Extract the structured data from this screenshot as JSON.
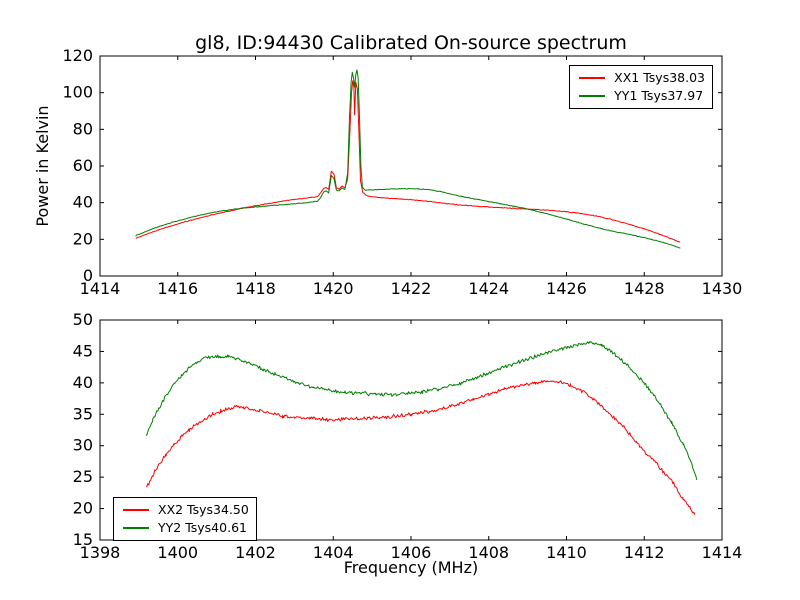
{
  "figure_background": "#ffffff",
  "chart_data": [
    {
      "type": "line",
      "name": "calibrated-on-source-spectrum-subband-1",
      "title": "gl8, ID:94430 Calibrated On-source spectrum",
      "ylabel": "Power in Kelvin",
      "xlim": [
        1414,
        1430
      ],
      "ylim": [
        0,
        120
      ],
      "xticks": [
        1414,
        1416,
        1418,
        1420,
        1422,
        1424,
        1426,
        1428,
        1430
      ],
      "yticks": [
        0,
        20,
        40,
        60,
        80,
        100,
        120
      ],
      "grid": false,
      "legend": {
        "position": "upper-right",
        "entries": [
          {
            "label": "XX1 Tsys38.03",
            "color": "#ff0000"
          },
          {
            "label": "YY1 Tsys37.97",
            "color": "#008000"
          }
        ]
      },
      "series": [
        {
          "name": "XX1",
          "color": "#ff0000",
          "noise": 0.2,
          "seed": 7,
          "points": [
            [
              1414.92,
              20.5
            ],
            [
              1415.2,
              22.8
            ],
            [
              1415.5,
              25.1
            ],
            [
              1415.9,
              27.8
            ],
            [
              1416.3,
              30.2
            ],
            [
              1416.7,
              32.4
            ],
            [
              1417.1,
              34.4
            ],
            [
              1417.5,
              36.2
            ],
            [
              1417.9,
              37.9
            ],
            [
              1418.3,
              39.4
            ],
            [
              1418.7,
              40.8
            ],
            [
              1419.1,
              42.0
            ],
            [
              1419.4,
              42.8
            ],
            [
              1419.6,
              43.3
            ],
            [
              1419.68,
              45.5
            ],
            [
              1419.75,
              47.8
            ],
            [
              1419.82,
              48.3
            ],
            [
              1419.88,
              47.2
            ],
            [
              1419.95,
              57.3
            ],
            [
              1420.02,
              55.5
            ],
            [
              1420.08,
              48.0
            ],
            [
              1420.15,
              47.5
            ],
            [
              1420.22,
              49.0
            ],
            [
              1420.3,
              48.2
            ],
            [
              1420.37,
              53.0
            ],
            [
              1420.43,
              80.0
            ],
            [
              1420.47,
              100.0
            ],
            [
              1420.5,
              106.5
            ],
            [
              1420.53,
              103.0
            ],
            [
              1420.55,
              88.0
            ],
            [
              1420.58,
              105.5
            ],
            [
              1420.62,
              102.0
            ],
            [
              1420.66,
              78.0
            ],
            [
              1420.7,
              52.0
            ],
            [
              1420.76,
              45.5
            ],
            [
              1420.85,
              44.0
            ],
            [
              1421.0,
              43.2
            ],
            [
              1421.3,
              42.6
            ],
            [
              1421.6,
              42.2
            ],
            [
              1422.0,
              41.6
            ],
            [
              1422.4,
              40.8
            ],
            [
              1422.8,
              39.8
            ],
            [
              1423.2,
              38.8
            ],
            [
              1423.6,
              38.2
            ],
            [
              1424.0,
              37.7
            ],
            [
              1424.4,
              37.2
            ],
            [
              1424.8,
              36.7
            ],
            [
              1425.2,
              36.3
            ],
            [
              1425.6,
              35.8
            ],
            [
              1426.0,
              35.0
            ],
            [
              1426.4,
              34.0
            ],
            [
              1426.8,
              32.6
            ],
            [
              1427.2,
              30.6
            ],
            [
              1427.6,
              28.3
            ],
            [
              1428.0,
              25.6
            ],
            [
              1428.4,
              22.8
            ],
            [
              1428.7,
              20.3
            ],
            [
              1428.92,
              18.4
            ]
          ]
        },
        {
          "name": "YY1",
          "color": "#008000",
          "noise": 0.2,
          "seed": 13,
          "points": [
            [
              1414.92,
              22.0
            ],
            [
              1415.2,
              24.5
            ],
            [
              1415.5,
              26.9
            ],
            [
              1415.9,
              29.5
            ],
            [
              1416.3,
              31.8
            ],
            [
              1416.7,
              33.8
            ],
            [
              1417.1,
              35.4
            ],
            [
              1417.5,
              36.6
            ],
            [
              1417.9,
              37.5
            ],
            [
              1418.3,
              38.2
            ],
            [
              1418.7,
              38.9
            ],
            [
              1419.1,
              39.6
            ],
            [
              1419.4,
              40.2
            ],
            [
              1419.6,
              40.8
            ],
            [
              1419.68,
              43.0
            ],
            [
              1419.75,
              45.8
            ],
            [
              1419.82,
              46.3
            ],
            [
              1419.88,
              45.3
            ],
            [
              1419.95,
              54.8
            ],
            [
              1420.02,
              53.0
            ],
            [
              1420.08,
              46.8
            ],
            [
              1420.15,
              46.4
            ],
            [
              1420.22,
              48.0
            ],
            [
              1420.3,
              47.4
            ],
            [
              1420.37,
              56.0
            ],
            [
              1420.42,
              88.0
            ],
            [
              1420.46,
              106.0
            ],
            [
              1420.49,
              111.0
            ],
            [
              1420.52,
              108.0
            ],
            [
              1420.55,
              103.0
            ],
            [
              1420.58,
              110.0
            ],
            [
              1420.61,
              112.5
            ],
            [
              1420.64,
              108.0
            ],
            [
              1420.67,
              90.0
            ],
            [
              1420.71,
              60.0
            ],
            [
              1420.75,
              48.5
            ],
            [
              1420.82,
              46.8
            ],
            [
              1421.0,
              47.0
            ],
            [
              1421.4,
              47.4
            ],
            [
              1421.8,
              47.6
            ],
            [
              1422.2,
              47.5
            ],
            [
              1422.5,
              47.0
            ],
            [
              1422.8,
              45.8
            ],
            [
              1423.1,
              44.3
            ],
            [
              1423.4,
              43.0
            ],
            [
              1423.7,
              41.8
            ],
            [
              1424.0,
              40.6
            ],
            [
              1424.3,
              39.4
            ],
            [
              1424.6,
              38.2
            ],
            [
              1424.9,
              37.0
            ],
            [
              1425.3,
              35.0
            ],
            [
              1425.7,
              32.8
            ],
            [
              1426.1,
              30.5
            ],
            [
              1426.5,
              28.0
            ],
            [
              1426.9,
              25.8
            ],
            [
              1427.3,
              24.0
            ],
            [
              1427.7,
              22.3
            ],
            [
              1428.1,
              20.4
            ],
            [
              1428.5,
              18.2
            ],
            [
              1428.8,
              16.2
            ],
            [
              1428.92,
              15.4
            ]
          ]
        }
      ]
    },
    {
      "type": "line",
      "name": "calibrated-on-source-spectrum-subband-2",
      "xlabel": "Frequency (MHz)",
      "xlim": [
        1398,
        1414
      ],
      "ylim": [
        15,
        50
      ],
      "xticks": [
        1398,
        1400,
        1402,
        1404,
        1406,
        1408,
        1410,
        1412,
        1414
      ],
      "yticks": [
        15,
        20,
        25,
        30,
        35,
        40,
        45,
        50
      ],
      "grid": false,
      "legend": {
        "position": "lower-left",
        "entries": [
          {
            "label": "XX2 Tsys34.50",
            "color": "#ff0000"
          },
          {
            "label": "YY2 Tsys40.61",
            "color": "#008000"
          }
        ]
      },
      "series": [
        {
          "name": "XX2",
          "color": "#ff0000",
          "noise": 0.3,
          "seed": 21,
          "points": [
            [
              1399.2,
              23.4
            ],
            [
              1399.35,
              25.3
            ],
            [
              1399.5,
              26.8
            ],
            [
              1399.7,
              28.6
            ],
            [
              1399.9,
              30.2
            ],
            [
              1400.1,
              31.5
            ],
            [
              1400.3,
              32.6
            ],
            [
              1400.5,
              33.5
            ],
            [
              1400.7,
              34.3
            ],
            [
              1400.9,
              35.0
            ],
            [
              1401.1,
              35.5
            ],
            [
              1401.3,
              35.9
            ],
            [
              1401.5,
              36.1
            ],
            [
              1401.7,
              36.0
            ],
            [
              1401.9,
              35.8
            ],
            [
              1402.1,
              35.5
            ],
            [
              1402.4,
              35.1
            ],
            [
              1402.7,
              34.7
            ],
            [
              1403.0,
              34.5
            ],
            [
              1403.4,
              34.3
            ],
            [
              1403.8,
              34.2
            ],
            [
              1404.3,
              34.2
            ],
            [
              1404.8,
              34.3
            ],
            [
              1405.2,
              34.5
            ],
            [
              1405.6,
              34.7
            ],
            [
              1406.0,
              35.0
            ],
            [
              1406.4,
              35.4
            ],
            [
              1406.8,
              35.9
            ],
            [
              1407.2,
              36.6
            ],
            [
              1407.6,
              37.4
            ],
            [
              1408.0,
              38.2
            ],
            [
              1408.4,
              39.0
            ],
            [
              1408.8,
              39.6
            ],
            [
              1409.2,
              40.0
            ],
            [
              1409.5,
              40.2
            ],
            [
              1409.8,
              40.1
            ],
            [
              1410.1,
              39.6
            ],
            [
              1410.4,
              38.7
            ],
            [
              1410.7,
              37.4
            ],
            [
              1410.9,
              36.3
            ],
            [
              1411.2,
              34.6
            ],
            [
              1411.5,
              32.8
            ],
            [
              1411.8,
              30.5
            ],
            [
              1412.1,
              28.5
            ],
            [
              1412.4,
              26.5
            ],
            [
              1412.7,
              24.5
            ],
            [
              1413.0,
              21.5
            ],
            [
              1413.15,
              20.3
            ],
            [
              1413.3,
              19.1
            ]
          ]
        },
        {
          "name": "YY2",
          "color": "#008000",
          "noise": 0.3,
          "seed": 33,
          "points": [
            [
              1399.2,
              31.8
            ],
            [
              1399.35,
              34.0
            ],
            [
              1399.5,
              35.9
            ],
            [
              1399.7,
              38.0
            ],
            [
              1399.9,
              39.8
            ],
            [
              1400.1,
              41.2
            ],
            [
              1400.3,
              42.4
            ],
            [
              1400.5,
              43.3
            ],
            [
              1400.7,
              43.9
            ],
            [
              1400.9,
              44.2
            ],
            [
              1401.1,
              44.1
            ],
            [
              1401.3,
              44.3
            ],
            [
              1401.5,
              43.9
            ],
            [
              1401.7,
              43.4
            ],
            [
              1401.9,
              42.9
            ],
            [
              1402.2,
              42.2
            ],
            [
              1402.5,
              41.4
            ],
            [
              1402.8,
              40.7
            ],
            [
              1403.1,
              40.0
            ],
            [
              1403.5,
              39.3
            ],
            [
              1403.9,
              38.8
            ],
            [
              1404.3,
              38.5
            ],
            [
              1404.7,
              38.3
            ],
            [
              1405.1,
              38.2
            ],
            [
              1405.5,
              38.2
            ],
            [
              1405.9,
              38.3
            ],
            [
              1406.3,
              38.6
            ],
            [
              1406.7,
              39.0
            ],
            [
              1407.1,
              39.6
            ],
            [
              1407.5,
              40.4
            ],
            [
              1407.9,
              41.3
            ],
            [
              1408.3,
              42.3
            ],
            [
              1408.7,
              43.2
            ],
            [
              1409.1,
              44.0
            ],
            [
              1409.5,
              44.8
            ],
            [
              1409.9,
              45.5
            ],
            [
              1410.3,
              46.1
            ],
            [
              1410.6,
              46.4
            ],
            [
              1410.9,
              46.0
            ],
            [
              1411.2,
              44.7
            ],
            [
              1411.5,
              43.2
            ],
            [
              1411.8,
              41.3
            ],
            [
              1412.1,
              39.2
            ],
            [
              1412.4,
              36.7
            ],
            [
              1412.7,
              33.7
            ],
            [
              1413.0,
              30.3
            ],
            [
              1413.2,
              27.5
            ],
            [
              1413.35,
              24.6
            ]
          ]
        }
      ]
    }
  ]
}
